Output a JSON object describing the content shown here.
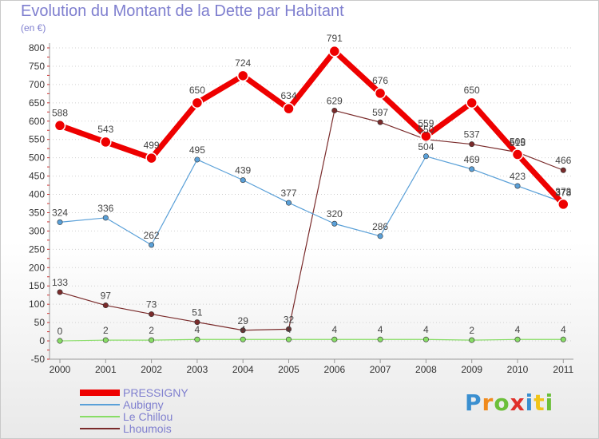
{
  "title": "Evolution du Montant de la Dette par Habitant",
  "unit": "(en €)",
  "logo": "Proxiti",
  "chart_data": {
    "type": "line",
    "x": [
      "2000",
      "2001",
      "2002",
      "2003",
      "2004",
      "2005",
      "2006",
      "2007",
      "2008",
      "2009",
      "2010",
      "2011"
    ],
    "ylim": [
      -50,
      800
    ],
    "yticks": [
      -50,
      0,
      50,
      100,
      150,
      200,
      250,
      300,
      350,
      400,
      450,
      500,
      550,
      600,
      650,
      700,
      750,
      800
    ],
    "grid": "dotted-horizontal",
    "legend_position": "bottom-left",
    "series": [
      {
        "name": "PRESSIGNY",
        "color": "#ee0000",
        "values": [
          588,
          543,
          499,
          650,
          724,
          634,
          791,
          676,
          559,
          650,
          509,
          373
        ]
      },
      {
        "name": "Aubigny",
        "color": "#5aa0d8",
        "values": [
          324,
          336,
          262,
          495,
          439,
          377,
          320,
          286,
          504,
          469,
          423,
          378
        ]
      },
      {
        "name": "Le Chillou",
        "color": "#88dd66",
        "values": [
          0,
          2,
          2,
          4,
          4,
          4,
          4,
          4,
          4,
          2,
          4,
          4
        ]
      },
      {
        "name": "Lhoumois",
        "color": "#7a2b2b",
        "values": [
          133,
          97,
          73,
          51,
          29,
          32,
          629,
          597,
          550,
          537,
          515,
          466
        ]
      }
    ]
  }
}
